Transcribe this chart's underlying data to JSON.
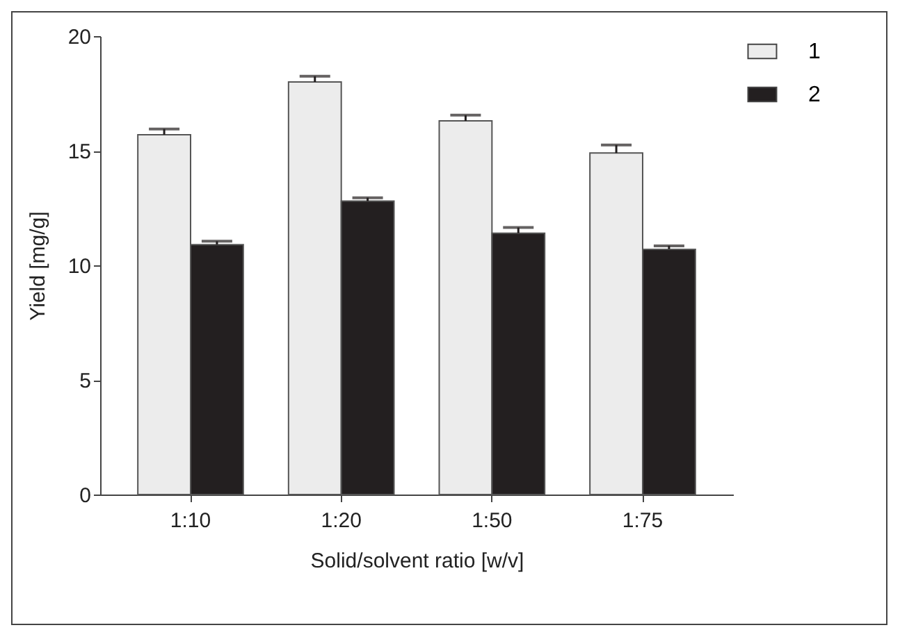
{
  "chart_data": {
    "type": "bar",
    "xlabel": "Solid/solvent ratio [w/v]",
    "ylabel": "Yield [mg/g]",
    "categories": [
      "1:10",
      "1:20",
      "1:50",
      "1:75"
    ],
    "series": [
      {
        "name": "1",
        "color": "#ececec",
        "values": [
          15.7,
          18.0,
          16.3,
          14.9
        ],
        "errors": [
          [
            15.7,
            15.95
          ],
          [
            18.0,
            18.25
          ],
          [
            16.3,
            16.55
          ],
          [
            14.9,
            15.25
          ]
        ]
      },
      {
        "name": "2",
        "color": "#231f20",
        "values": [
          10.9,
          12.8,
          11.4,
          10.7
        ],
        "errors": [
          [
            10.9,
            11.05
          ],
          [
            12.8,
            12.95
          ],
          [
            11.4,
            11.65
          ],
          [
            10.7,
            10.85
          ]
        ]
      }
    ],
    "ylim": [
      0,
      20
    ],
    "yticks": [
      0,
      5,
      10,
      15,
      20
    ],
    "grid": false,
    "legend": "top right"
  }
}
